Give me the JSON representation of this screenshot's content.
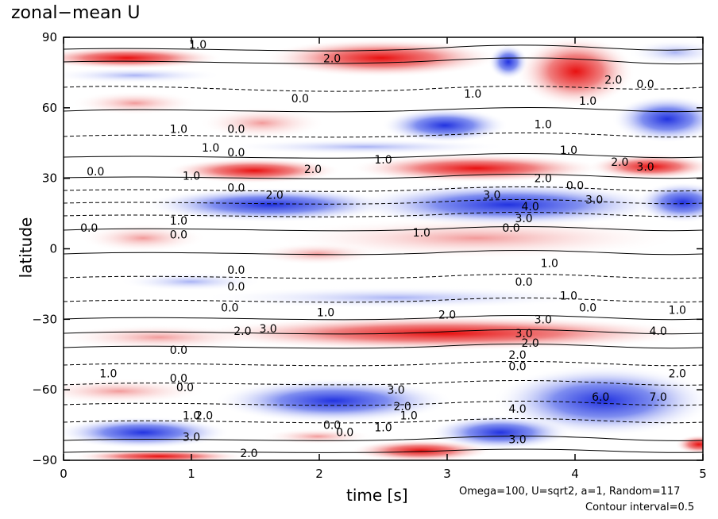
{
  "chart_data": {
    "type": "heatmap",
    "title": "zonal−mean U",
    "xlabel": "time [s]",
    "ylabel": "latitude",
    "xlim": [
      0,
      5
    ],
    "ylim": [
      -90,
      90
    ],
    "xticks": [
      "0",
      "1",
      "2",
      "3",
      "4",
      "5"
    ],
    "yticks": [
      "90",
      "60",
      "30",
      "0",
      "−30",
      "−60",
      "−90"
    ],
    "annotations": [
      "Omega=100, U=sqrt2, a=1, Random=117",
      "Contour interval=0.5"
    ],
    "colors": {
      "positive": "#e41a1c",
      "negative": "#2b3fd6",
      "zero": "#ffffff"
    },
    "contour_labels": [
      {
        "text": "1.0",
        "t": 1.05,
        "lat": 87
      },
      {
        "text": "2.0",
        "t": 2.1,
        "lat": 81
      },
      {
        "text": "1.0",
        "t": 3.2,
        "lat": 66
      },
      {
        "text": "0.0",
        "t": 1.85,
        "lat": 64
      },
      {
        "text": "0.0",
        "t": 4.55,
        "lat": 70
      },
      {
        "text": "2.0",
        "t": 4.3,
        "lat": 72
      },
      {
        "text": "1.0",
        "t": 4.1,
        "lat": 63
      },
      {
        "text": "1.0",
        "t": 0.9,
        "lat": 51
      },
      {
        "text": "0.0",
        "t": 1.35,
        "lat": 51
      },
      {
        "text": "1.0",
        "t": 1.15,
        "lat": 43
      },
      {
        "text": "0.0",
        "t": 1.35,
        "lat": 41
      },
      {
        "text": "1.0",
        "t": 3.75,
        "lat": 53
      },
      {
        "text": "1.0",
        "t": 3.95,
        "lat": 42
      },
      {
        "text": "1.0",
        "t": 2.5,
        "lat": 38
      },
      {
        "text": "0.0",
        "t": 0.25,
        "lat": 33
      },
      {
        "text": "1.0",
        "t": 1.0,
        "lat": 31
      },
      {
        "text": "2.0",
        "t": 1.95,
        "lat": 34
      },
      {
        "text": "2.0",
        "t": 4.35,
        "lat": 37
      },
      {
        "text": "3.0",
        "t": 4.55,
        "lat": 35
      },
      {
        "text": "2.0",
        "t": 3.75,
        "lat": 30
      },
      {
        "text": "0.0",
        "t": 1.35,
        "lat": 26
      },
      {
        "text": "2.0",
        "t": 1.65,
        "lat": 23
      },
      {
        "text": "3.0",
        "t": 3.35,
        "lat": 23
      },
      {
        "text": "0.0",
        "t": 4.0,
        "lat": 27
      },
      {
        "text": "3.0",
        "t": 4.15,
        "lat": 21
      },
      {
        "text": "4.0",
        "t": 3.65,
        "lat": 18
      },
      {
        "text": "3.0",
        "t": 3.6,
        "lat": 13
      },
      {
        "text": "1.0",
        "t": 0.9,
        "lat": 12
      },
      {
        "text": "0.0",
        "t": 0.2,
        "lat": 9
      },
      {
        "text": "0.0",
        "t": 0.9,
        "lat": 6
      },
      {
        "text": "1.0",
        "t": 2.8,
        "lat": 7
      },
      {
        "text": "0.0",
        "t": 3.5,
        "lat": 9
      },
      {
        "text": "1.0",
        "t": 3.8,
        "lat": -6
      },
      {
        "text": "0.0",
        "t": 1.35,
        "lat": -9
      },
      {
        "text": "0.0",
        "t": 3.6,
        "lat": -14
      },
      {
        "text": "0.0",
        "t": 1.35,
        "lat": -16
      },
      {
        "text": "1.0",
        "t": 3.95,
        "lat": -20
      },
      {
        "text": "0.0",
        "t": 1.3,
        "lat": -25
      },
      {
        "text": "1.0",
        "t": 2.05,
        "lat": -27
      },
      {
        "text": "0.0",
        "t": 4.1,
        "lat": -25
      },
      {
        "text": "1.0",
        "t": 4.8,
        "lat": -26
      },
      {
        "text": "2.0",
        "t": 3.0,
        "lat": -28
      },
      {
        "text": "3.0",
        "t": 3.75,
        "lat": -30
      },
      {
        "text": "2.0",
        "t": 1.4,
        "lat": -35
      },
      {
        "text": "3.0",
        "t": 1.6,
        "lat": -34
      },
      {
        "text": "3.0",
        "t": 3.6,
        "lat": -36
      },
      {
        "text": "4.0",
        "t": 4.65,
        "lat": -35
      },
      {
        "text": "2.0",
        "t": 3.65,
        "lat": -40
      },
      {
        "text": "0.0",
        "t": 0.9,
        "lat": -43
      },
      {
        "text": "2.0",
        "t": 3.55,
        "lat": -45
      },
      {
        "text": "0.0",
        "t": 3.55,
        "lat": -50
      },
      {
        "text": "1.0",
        "t": 0.35,
        "lat": -53
      },
      {
        "text": "0.0",
        "t": 0.9,
        "lat": -55
      },
      {
        "text": "2.0",
        "t": 4.8,
        "lat": -53
      },
      {
        "text": "0.0",
        "t": 0.95,
        "lat": -59
      },
      {
        "text": "3.0",
        "t": 2.6,
        "lat": -60
      },
      {
        "text": "6.0",
        "t": 4.2,
        "lat": -63
      },
      {
        "text": "7.0",
        "t": 4.65,
        "lat": -63
      },
      {
        "text": "2.0",
        "t": 2.65,
        "lat": -67
      },
      {
        "text": "4.0",
        "t": 3.55,
        "lat": -68
      },
      {
        "text": "1.0",
        "t": 1.0,
        "lat": -71
      },
      {
        "text": "2.0",
        "t": 1.1,
        "lat": -71
      },
      {
        "text": "1.0",
        "t": 2.7,
        "lat": -71
      },
      {
        "text": "0.0",
        "t": 2.1,
        "lat": -75
      },
      {
        "text": "1.0",
        "t": 2.5,
        "lat": -76
      },
      {
        "text": "3.0",
        "t": 1.0,
        "lat": -80
      },
      {
        "text": "0.0",
        "t": 2.2,
        "lat": -78
      },
      {
        "text": "3.0",
        "t": 3.55,
        "lat": -81
      },
      {
        "text": "2.0",
        "t": 1.45,
        "lat": -87
      }
    ]
  }
}
